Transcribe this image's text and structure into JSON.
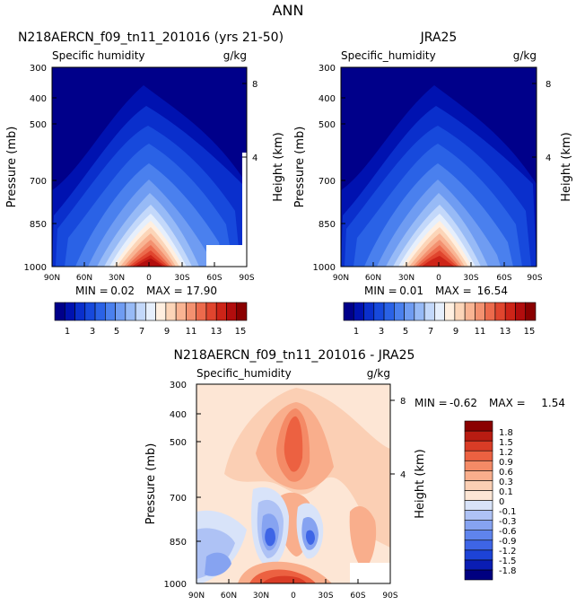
{
  "page_title": "ANN",
  "colors": {
    "abs_scale": [
      "#00008a",
      "#0012b0",
      "#0a2fcc",
      "#1749dc",
      "#2a62e6",
      "#4a80ee",
      "#6f9cf2",
      "#97baf6",
      "#c3d8fa",
      "#e6effc",
      "#ffefe0",
      "#fcd5b8",
      "#f9b493",
      "#f39170",
      "#ec6a4c",
      "#e0452e",
      "#cd2418",
      "#b20d0d",
      "#8a0000"
    ],
    "diff_scale": [
      "#000080",
      "#0a1db3",
      "#1d43d6",
      "#3e65e6",
      "#5f84ed",
      "#86a3f1",
      "#aec2f5",
      "#d8e3f9",
      "#fde6d5",
      "#fbcfb4",
      "#f9ae8c",
      "#f48a66",
      "#ec6141",
      "#d93c26",
      "#b81c12",
      "#8a0000"
    ]
  },
  "chart_data": [
    {
      "type": "contour",
      "panel": "left",
      "title": "N218AERCN_f09_tn11_201016 (yrs 21-50)",
      "variable": "Specific humidity",
      "units": "g/kg",
      "ylabel": "Pressure (mb)",
      "y2label": "Height (km)",
      "x_ticks": [
        "90N",
        "60N",
        "30N",
        "0",
        "30S",
        "60S",
        "90S"
      ],
      "y_ticks": [
        "300",
        "400",
        "500",
        "700",
        "850",
        "1000"
      ],
      "y2_ticks": [
        "8",
        "4"
      ],
      "ylim": [
        1000,
        300
      ],
      "stats": {
        "min_label": "MIN =",
        "min": "0.02",
        "max_label": "MAX =",
        "max": "17.90"
      },
      "colorbar_labels": [
        "1",
        "3",
        "5",
        "7",
        "9",
        "11",
        "13",
        "15"
      ]
    },
    {
      "type": "contour",
      "panel": "right",
      "title": "JRA25",
      "variable": "Specific_humidity",
      "units": "g/kg",
      "ylabel": "Pressure (mb)",
      "y2label": "Height (km)",
      "x_ticks": [
        "90N",
        "60N",
        "30N",
        "0",
        "30S",
        "60S",
        "90S"
      ],
      "y_ticks": [
        "300",
        "400",
        "500",
        "700",
        "850",
        "1000"
      ],
      "y2_ticks": [
        "8",
        "4"
      ],
      "ylim": [
        1000,
        300
      ],
      "stats": {
        "min_label": "MIN =",
        "min": "0.01",
        "max_label": "MAX =",
        "max": "16.54"
      },
      "colorbar_labels": [
        "1",
        "3",
        "5",
        "7",
        "9",
        "11",
        "13",
        "15"
      ]
    },
    {
      "type": "contour",
      "panel": "difference",
      "title": "N218AERCN_f09_tn11_201016 - JRA25",
      "variable": "Specific_humidity",
      "units": "g/kg",
      "ylabel": "Pressure (mb)",
      "y2label": "Height (km)",
      "x_ticks": [
        "90N",
        "60N",
        "30N",
        "0",
        "30S",
        "60S",
        "90S"
      ],
      "y_ticks": [
        "300",
        "400",
        "500",
        "700",
        "850",
        "1000"
      ],
      "y2_ticks": [
        "8",
        "4"
      ],
      "ylim": [
        1000,
        300
      ],
      "stats": {
        "min_label": "MIN =",
        "min": "-0.62",
        "max_label": "MAX =",
        "max": "1.54"
      },
      "colorbar_labels": [
        "1.8",
        "1.5",
        "1.2",
        "0.9",
        "0.6",
        "0.3",
        "0.1",
        "0",
        "-0.1",
        "-0.3",
        "-0.6",
        "-0.9",
        "-1.2",
        "-1.5",
        "-1.8"
      ]
    }
  ]
}
